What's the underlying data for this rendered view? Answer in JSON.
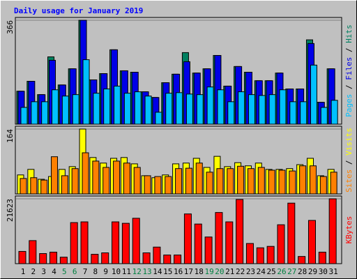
{
  "title": "Daily usage for January 2019",
  "legend_separator": "/",
  "categories": [
    "1",
    "2",
    "3",
    "4",
    "5",
    "6",
    "7",
    "8",
    "9",
    "10",
    "11",
    "12",
    "13",
    "14",
    "15",
    "16",
    "17",
    "18",
    "19",
    "20",
    "21",
    "22",
    "23",
    "24",
    "25",
    "26",
    "27",
    "28",
    "29",
    "30",
    "31"
  ],
  "weekend_indices": [
    4,
    5,
    11,
    12,
    18,
    19,
    25,
    26
  ],
  "weekend_color": "#008040",
  "chart_data": [
    {
      "type": "bar",
      "ylim": [
        0,
        366
      ],
      "yticks": [
        366
      ],
      "grid": true,
      "series": [
        {
          "name": "Hits",
          "color": "#008060",
          "values": [
            116,
            151,
            104,
            237,
            138,
            195,
            366,
            156,
            178,
            262,
            188,
            183,
            114,
            94,
            146,
            176,
            252,
            180,
            195,
            242,
            134,
            203,
            183,
            153,
            153,
            180,
            124,
            124,
            297,
            77,
            195
          ]
        },
        {
          "name": "Files",
          "color": "#0000e6",
          "values": [
            116,
            151,
            104,
            225,
            138,
            195,
            366,
            156,
            178,
            262,
            188,
            183,
            114,
            94,
            146,
            176,
            220,
            180,
            195,
            242,
            134,
            203,
            183,
            153,
            153,
            180,
            124,
            124,
            284,
            77,
            195
          ]
        },
        {
          "name": "Pages",
          "color": "#00c0ff",
          "values": [
            59,
            79,
            79,
            121,
            99,
            104,
            227,
            109,
            124,
            134,
            109,
            114,
            99,
            42,
            109,
            111,
            106,
            104,
            131,
            121,
            79,
            114,
            104,
            101,
            104,
            121,
            79,
            79,
            208,
            59,
            84
          ]
        }
      ]
    },
    {
      "type": "bar",
      "ylim": [
        0,
        164
      ],
      "yticks": [
        164
      ],
      "grid": true,
      "series": [
        {
          "name": "Visits",
          "color": "#ffff00",
          "values": [
            48,
            62,
            37,
            44,
            62,
            69,
            164,
            92,
            78,
            90,
            92,
            76,
            46,
            41,
            48,
            76,
            78,
            90,
            67,
            95,
            69,
            79,
            71,
            78,
            62,
            62,
            64,
            74,
            90,
            46,
            62
          ]
        },
        {
          "name": "Sites",
          "color": "#ff8000",
          "values": [
            39,
            41,
            35,
            94,
            46,
            64,
            104,
            83,
            67,
            83,
            78,
            67,
            46,
            44,
            44,
            64,
            65,
            78,
            55,
            64,
            64,
            70,
            64,
            67,
            60,
            60,
            58,
            71,
            71,
            44,
            55
          ]
        }
      ]
    },
    {
      "type": "bar",
      "ylim": [
        0,
        21623
      ],
      "yticks": [
        21623
      ],
      "grid": true,
      "series": [
        {
          "name": "KBytes",
          "color": "#ff0000",
          "values": [
            4084,
            7688,
            3364,
            3844,
            2162,
            13694,
            13935,
            3124,
            3604,
            13935,
            13454,
            15136,
            3604,
            5526,
            2883,
            2883,
            16577,
            13214,
            8890,
            17058,
            13935,
            21383,
            6727,
            5286,
            5766,
            12974,
            20181,
            2403,
            14415,
            3844,
            21623
          ]
        }
      ]
    }
  ]
}
